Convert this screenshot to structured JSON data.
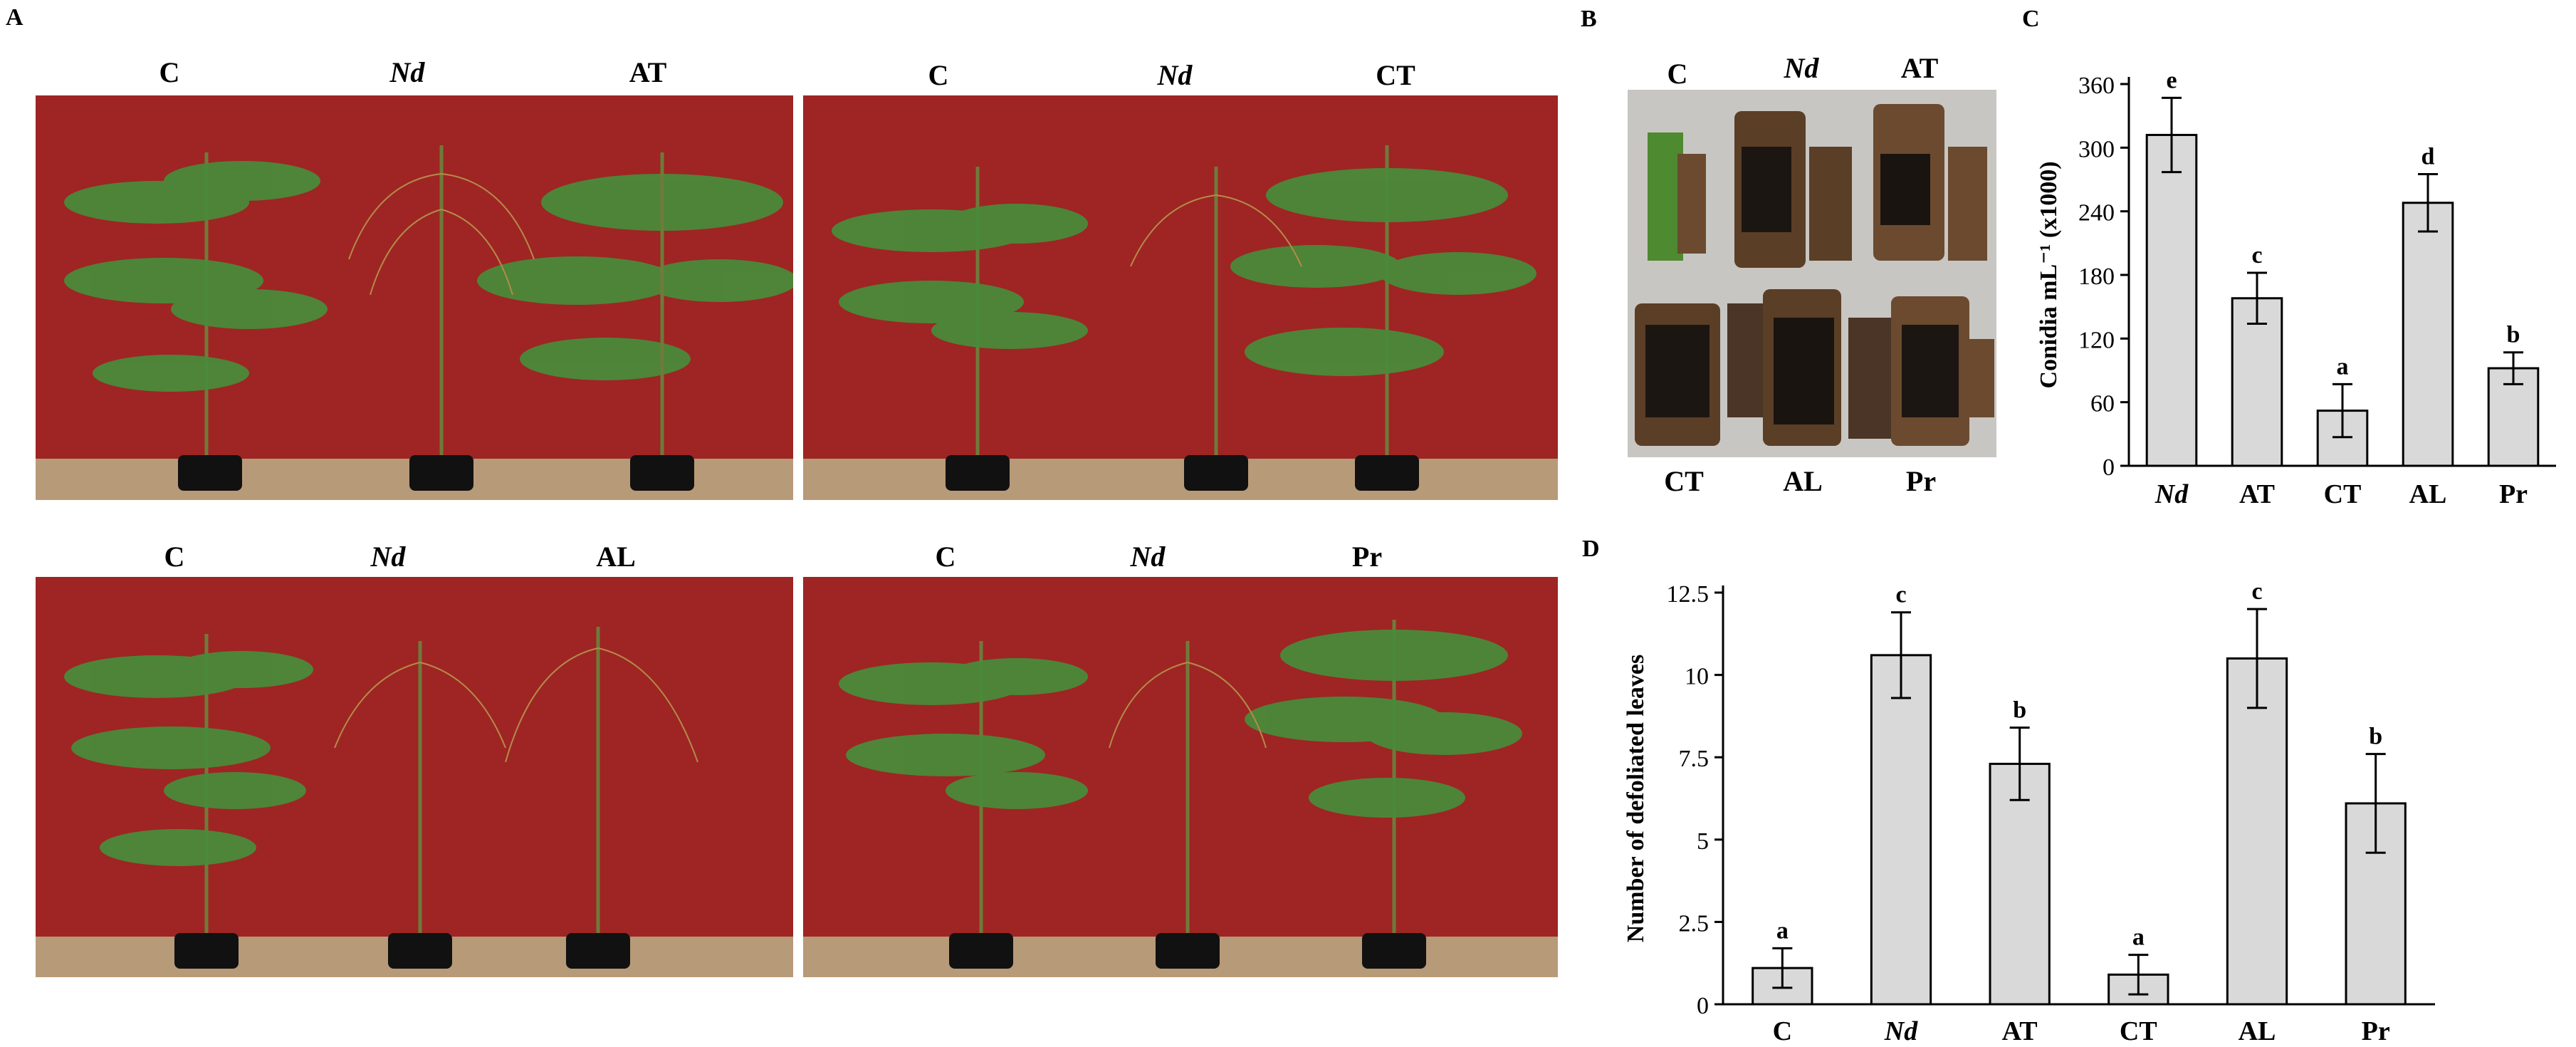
{
  "panels": {
    "A": "A",
    "B": "B",
    "C": "C",
    "D": "D"
  },
  "photos_A": [
    {
      "labels": [
        "C",
        "Nd",
        "AT"
      ]
    },
    {
      "labels": [
        "C",
        "Nd",
        "CT"
      ]
    },
    {
      "labels": [
        "C",
        "Nd",
        "AL"
      ]
    },
    {
      "labels": [
        "C",
        "Nd",
        "Pr"
      ]
    }
  ],
  "photo_B": {
    "top_labels": [
      "C",
      "Nd",
      "AT"
    ],
    "bottom_labels": [
      "CT",
      "AL",
      "Pr"
    ]
  },
  "colors": {
    "wall": "#9e2523",
    "ground": "#b79a78",
    "foliage": "#4a8a3a",
    "bar_fill": "#d9d9d9",
    "bar_stroke": "#000000"
  },
  "chart_data": [
    {
      "type": "bar",
      "panel": "C",
      "categories": [
        "Nd",
        "AT",
        "CT",
        "AL",
        "Pr"
      ],
      "italic_categories": [
        "Nd"
      ],
      "values": [
        312,
        158,
        52,
        248,
        92
      ],
      "errors": [
        35,
        24,
        25,
        27,
        15
      ],
      "significance": [
        "e",
        "c",
        "a",
        "d",
        "b"
      ],
      "ylabel": "Conidia  mL⁻¹ (x1000)",
      "ylim": [
        0,
        360
      ],
      "yticks": [
        "0",
        "60",
        "120",
        "180",
        "240",
        "300",
        "360"
      ],
      "ytick_values": [
        0,
        60,
        120,
        180,
        240,
        300,
        360
      ]
    },
    {
      "type": "bar",
      "panel": "D",
      "categories": [
        "C",
        "Nd",
        "AT",
        "CT",
        "AL",
        "Pr"
      ],
      "italic_categories": [
        "Nd"
      ],
      "values": [
        1.1,
        10.6,
        7.3,
        0.9,
        10.5,
        6.1
      ],
      "errors": [
        0.6,
        1.3,
        1.1,
        0.6,
        1.5,
        1.5
      ],
      "significance": [
        "a",
        "c",
        "b",
        "a",
        "c",
        "b"
      ],
      "ylabel": "Number  of defoliated leaves",
      "ylim": [
        0,
        12.5
      ],
      "yticks": [
        "0",
        "2.5",
        "5",
        "7.5",
        "10",
        "12.5"
      ],
      "ytick_values": [
        0,
        2.5,
        5,
        7.5,
        10,
        12.5
      ]
    }
  ]
}
